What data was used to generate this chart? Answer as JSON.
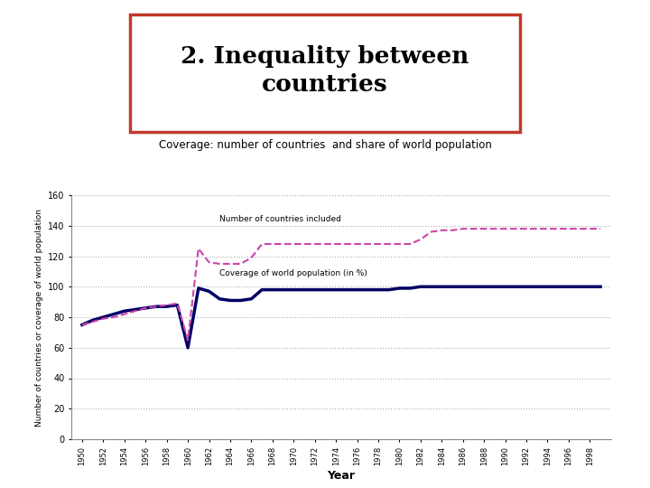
{
  "title_main": "2. Inequality between\ncountries",
  "subtitle": "Coverage: number of countries  and share of world population",
  "xlabel": "Year",
  "ylabel": "Number of countries or coverage of world population",
  "ylim": [
    0,
    160
  ],
  "yticks": [
    0,
    20,
    40,
    60,
    80,
    100,
    120,
    140,
    160
  ],
  "background_color": "#ffffff",
  "box_color": "#c0392b",
  "countries_color": "#cc44aa",
  "population_color": "#000066",
  "countries_label": "Number of countries included",
  "population_label": "Coverage of world population (in %)",
  "years": [
    1950,
    1951,
    1952,
    1953,
    1954,
    1955,
    1956,
    1957,
    1958,
    1959,
    1960,
    1961,
    1962,
    1963,
    1964,
    1965,
    1966,
    1967,
    1968,
    1969,
    1970,
    1971,
    1972,
    1973,
    1974,
    1975,
    1976,
    1977,
    1978,
    1979,
    1980,
    1981,
    1982,
    1983,
    1984,
    1985,
    1986,
    1987,
    1988,
    1989,
    1990,
    1991,
    1992,
    1993,
    1994,
    1995,
    1996,
    1997,
    1998,
    1999
  ],
  "countries_data": [
    75,
    77,
    79,
    80,
    82,
    84,
    86,
    87,
    88,
    89,
    65,
    125,
    116,
    115,
    115,
    115,
    119,
    128,
    128,
    128,
    128,
    128,
    128,
    128,
    128,
    128,
    128,
    128,
    128,
    128,
    128,
    128,
    131,
    136,
    137,
    137,
    138,
    138,
    138,
    138,
    138,
    138,
    138,
    138,
    138,
    138,
    138,
    138,
    138,
    138
  ],
  "population_data": [
    75,
    78,
    80,
    82,
    84,
    85,
    86,
    87,
    87,
    88,
    60,
    99,
    97,
    92,
    91,
    91,
    92,
    98,
    98,
    98,
    98,
    98,
    98,
    98,
    98,
    98,
    98,
    98,
    98,
    98,
    99,
    99,
    100,
    100,
    100,
    100,
    100,
    100,
    100,
    100,
    100,
    100,
    100,
    100,
    100,
    100,
    100,
    100,
    100,
    100
  ]
}
